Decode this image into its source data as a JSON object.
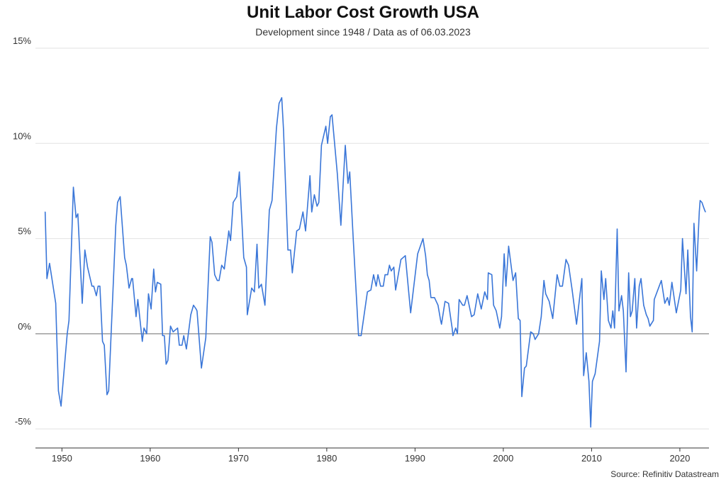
{
  "chart_data": {
    "type": "line",
    "title": "Unit Labor Cost Growth USA",
    "subtitle": "Development since 1948 / Data as of 06.03.2023",
    "source": "Source: Refinitiv Datastream",
    "xlabel": "",
    "ylabel": "",
    "xlim": [
      1947,
      2023.3
    ],
    "ylim": [
      -6,
      15
    ],
    "grid": "horizontal",
    "line_color": "#3a76d8",
    "zero_line_color": "#888888",
    "x_ticks": [
      1950,
      1960,
      1970,
      1980,
      1990,
      2000,
      2010,
      2020
    ],
    "x_tick_labels": [
      "1950",
      "1960",
      "1970",
      "1980",
      "1990",
      "2000",
      "2010",
      "2020"
    ],
    "y_ticks": [
      -5,
      0,
      5,
      10,
      15
    ],
    "y_tick_labels": [
      "-5%",
      "0%",
      "5%",
      "10%",
      "15%"
    ],
    "series": [
      {
        "points": [
          [
            1948.1,
            6.4
          ],
          [
            1948.3,
            2.9
          ],
          [
            1948.6,
            3.7
          ],
          [
            1949.3,
            1.6
          ],
          [
            1949.6,
            -3.0
          ],
          [
            1949.9,
            -3.8
          ],
          [
            1950.6,
            0.0
          ],
          [
            1950.8,
            0.7
          ],
          [
            1951.3,
            7.7
          ],
          [
            1951.6,
            6.1
          ],
          [
            1951.8,
            6.3
          ],
          [
            1952.3,
            1.6
          ],
          [
            1952.6,
            4.4
          ],
          [
            1952.9,
            3.5
          ],
          [
            1953.4,
            2.5
          ],
          [
            1953.6,
            2.5
          ],
          [
            1953.9,
            2.0
          ],
          [
            1954.1,
            2.5
          ],
          [
            1954.3,
            2.5
          ],
          [
            1954.6,
            -0.4
          ],
          [
            1954.8,
            -0.6
          ],
          [
            1955.1,
            -3.2
          ],
          [
            1955.3,
            -3.0
          ],
          [
            1956.1,
            5.7
          ],
          [
            1956.3,
            6.9
          ],
          [
            1956.6,
            7.2
          ],
          [
            1957.1,
            4.0
          ],
          [
            1957.3,
            3.6
          ],
          [
            1957.6,
            2.4
          ],
          [
            1957.9,
            2.9
          ],
          [
            1958.0,
            2.9
          ],
          [
            1958.4,
            0.9
          ],
          [
            1958.6,
            1.8
          ],
          [
            1959.1,
            -0.4
          ],
          [
            1959.3,
            0.3
          ],
          [
            1959.6,
            0.0
          ],
          [
            1959.8,
            2.1
          ],
          [
            1960.1,
            1.3
          ],
          [
            1960.4,
            3.4
          ],
          [
            1960.6,
            2.2
          ],
          [
            1960.8,
            2.7
          ],
          [
            1961.2,
            2.6
          ],
          [
            1961.4,
            -0.1
          ],
          [
            1961.6,
            -0.1
          ],
          [
            1961.8,
            -1.6
          ],
          [
            1962.0,
            -1.4
          ],
          [
            1962.3,
            0.4
          ],
          [
            1962.6,
            0.1
          ],
          [
            1963.1,
            0.3
          ],
          [
            1963.3,
            -0.6
          ],
          [
            1963.6,
            -0.6
          ],
          [
            1963.8,
            -0.1
          ],
          [
            1964.1,
            -0.8
          ],
          [
            1964.6,
            1.0
          ],
          [
            1964.9,
            1.5
          ],
          [
            1965.2,
            1.3
          ],
          [
            1965.3,
            1.2
          ],
          [
            1965.8,
            -1.8
          ],
          [
            1966.3,
            -0.2
          ],
          [
            1966.8,
            5.1
          ],
          [
            1967.0,
            4.8
          ],
          [
            1967.3,
            3.1
          ],
          [
            1967.6,
            2.8
          ],
          [
            1967.8,
            2.8
          ],
          [
            1968.1,
            3.6
          ],
          [
            1968.4,
            3.4
          ],
          [
            1968.9,
            5.4
          ],
          [
            1969.1,
            4.9
          ],
          [
            1969.4,
            6.9
          ],
          [
            1969.8,
            7.2
          ],
          [
            1970.1,
            8.5
          ],
          [
            1970.6,
            4.0
          ],
          [
            1970.9,
            3.5
          ],
          [
            1971.0,
            1.0
          ],
          [
            1971.5,
            2.4
          ],
          [
            1971.8,
            2.2
          ],
          [
            1972.1,
            4.7
          ],
          [
            1972.3,
            2.4
          ],
          [
            1972.6,
            2.6
          ],
          [
            1973.0,
            1.5
          ],
          [
            1973.5,
            6.5
          ],
          [
            1973.8,
            7.0
          ],
          [
            1974.3,
            10.8
          ],
          [
            1974.6,
            12.1
          ],
          [
            1974.9,
            12.4
          ],
          [
            1975.1,
            10.7
          ],
          [
            1975.6,
            4.4
          ],
          [
            1975.9,
            4.4
          ],
          [
            1976.1,
            3.2
          ],
          [
            1976.6,
            5.4
          ],
          [
            1976.9,
            5.5
          ],
          [
            1977.3,
            6.4
          ],
          [
            1977.6,
            5.4
          ],
          [
            1978.1,
            8.3
          ],
          [
            1978.3,
            6.4
          ],
          [
            1978.6,
            7.3
          ],
          [
            1978.9,
            6.7
          ],
          [
            1979.1,
            6.9
          ],
          [
            1979.4,
            9.9
          ],
          [
            1979.9,
            10.9
          ],
          [
            1980.1,
            10.0
          ],
          [
            1980.4,
            11.4
          ],
          [
            1980.6,
            11.5
          ],
          [
            1981.2,
            8.4
          ],
          [
            1981.6,
            5.7
          ],
          [
            1982.1,
            9.9
          ],
          [
            1982.4,
            7.9
          ],
          [
            1982.6,
            8.5
          ],
          [
            1983.0,
            5.0
          ],
          [
            1983.6,
            -0.1
          ],
          [
            1983.9,
            -0.1
          ],
          [
            1984.6,
            2.2
          ],
          [
            1985.0,
            2.3
          ],
          [
            1985.3,
            3.1
          ],
          [
            1985.6,
            2.5
          ],
          [
            1985.8,
            3.1
          ],
          [
            1986.1,
            2.5
          ],
          [
            1986.4,
            2.5
          ],
          [
            1986.6,
            3.1
          ],
          [
            1986.9,
            3.1
          ],
          [
            1987.1,
            3.6
          ],
          [
            1987.3,
            3.3
          ],
          [
            1987.6,
            3.5
          ],
          [
            1987.8,
            2.3
          ],
          [
            1988.4,
            3.9
          ],
          [
            1988.9,
            4.1
          ],
          [
            1989.5,
            1.1
          ],
          [
            1990.3,
            4.2
          ],
          [
            1990.9,
            5.0
          ],
          [
            1991.2,
            4.1
          ],
          [
            1991.4,
            3.1
          ],
          [
            1991.6,
            2.8
          ],
          [
            1991.8,
            1.9
          ],
          [
            1992.2,
            1.9
          ],
          [
            1992.6,
            1.5
          ],
          [
            1992.9,
            0.7
          ],
          [
            1993.0,
            0.5
          ],
          [
            1993.4,
            1.7
          ],
          [
            1993.8,
            1.6
          ],
          [
            1994.2,
            0.3
          ],
          [
            1994.3,
            -0.1
          ],
          [
            1994.6,
            0.3
          ],
          [
            1994.8,
            0.0
          ],
          [
            1995.0,
            1.8
          ],
          [
            1995.4,
            1.5
          ],
          [
            1995.6,
            1.5
          ],
          [
            1995.9,
            2.0
          ],
          [
            1996.4,
            0.9
          ],
          [
            1996.7,
            1.0
          ],
          [
            1997.1,
            2.1
          ],
          [
            1997.5,
            1.3
          ],
          [
            1997.9,
            2.2
          ],
          [
            1998.2,
            1.8
          ],
          [
            1998.3,
            3.2
          ],
          [
            1998.7,
            3.1
          ],
          [
            1998.9,
            1.5
          ],
          [
            1999.2,
            1.2
          ],
          [
            1999.6,
            0.3
          ],
          [
            1999.8,
            0.9
          ],
          [
            2000.1,
            4.2
          ],
          [
            2000.3,
            2.5
          ],
          [
            2000.6,
            4.6
          ],
          [
            2001.1,
            2.8
          ],
          [
            2001.4,
            3.2
          ],
          [
            2001.7,
            0.8
          ],
          [
            2001.9,
            0.7
          ],
          [
            2002.1,
            -3.3
          ],
          [
            2002.4,
            -1.8
          ],
          [
            2002.6,
            -1.7
          ],
          [
            2003.1,
            0.1
          ],
          [
            2003.4,
            0.0
          ],
          [
            2003.6,
            -0.3
          ],
          [
            2004.0,
            0.0
          ],
          [
            2004.3,
            0.9
          ],
          [
            2004.6,
            2.8
          ],
          [
            2004.8,
            2.1
          ],
          [
            2005.2,
            1.7
          ],
          [
            2005.6,
            0.8
          ],
          [
            2006.1,
            3.1
          ],
          [
            2006.4,
            2.5
          ],
          [
            2006.7,
            2.5
          ],
          [
            2007.1,
            3.9
          ],
          [
            2007.4,
            3.6
          ],
          [
            2007.8,
            2.3
          ],
          [
            2008.3,
            0.5
          ],
          [
            2008.9,
            2.9
          ],
          [
            2009.1,
            -2.2
          ],
          [
            2009.4,
            -1.0
          ],
          [
            2009.7,
            -2.5
          ],
          [
            2009.9,
            -4.9
          ],
          [
            2010.1,
            -2.5
          ],
          [
            2010.4,
            -2.1
          ],
          [
            2010.9,
            -0.4
          ],
          [
            2011.1,
            3.3
          ],
          [
            2011.4,
            1.8
          ],
          [
            2011.6,
            2.9
          ],
          [
            2011.9,
            0.7
          ],
          [
            2012.2,
            0.3
          ],
          [
            2012.4,
            1.2
          ],
          [
            2012.6,
            0.3
          ],
          [
            2012.9,
            5.5
          ],
          [
            2013.1,
            1.2
          ],
          [
            2013.4,
            2.0
          ],
          [
            2013.6,
            1.2
          ],
          [
            2013.9,
            -2.0
          ],
          [
            2014.2,
            3.2
          ],
          [
            2014.4,
            0.9
          ],
          [
            2014.6,
            1.2
          ],
          [
            2014.9,
            2.9
          ],
          [
            2015.1,
            0.3
          ],
          [
            2015.4,
            2.5
          ],
          [
            2015.6,
            2.9
          ],
          [
            2015.9,
            1.5
          ],
          [
            2016.2,
            1.0
          ],
          [
            2016.4,
            0.8
          ],
          [
            2016.6,
            0.4
          ],
          [
            2017.0,
            0.7
          ],
          [
            2017.1,
            1.8
          ],
          [
            2017.9,
            2.8
          ],
          [
            2018.3,
            1.6
          ],
          [
            2018.6,
            1.9
          ],
          [
            2018.8,
            1.5
          ],
          [
            2019.1,
            2.7
          ],
          [
            2019.6,
            1.1
          ],
          [
            2020.1,
            2.3
          ],
          [
            2020.3,
            5.0
          ],
          [
            2020.7,
            2.1
          ],
          [
            2020.9,
            4.4
          ],
          [
            2021.2,
            0.9
          ],
          [
            2021.4,
            0.1
          ],
          [
            2021.6,
            5.8
          ],
          [
            2021.9,
            3.3
          ],
          [
            2022.2,
            6.4
          ],
          [
            2022.3,
            7.0
          ],
          [
            2022.5,
            6.9
          ],
          [
            2022.8,
            6.5
          ],
          [
            2022.9,
            6.4
          ]
        ]
      }
    ]
  }
}
